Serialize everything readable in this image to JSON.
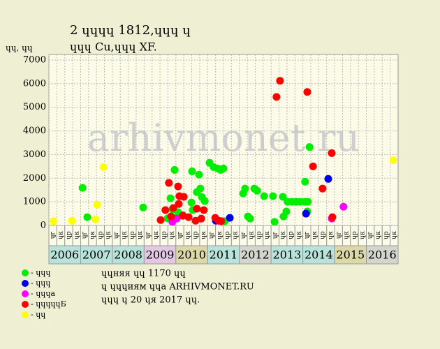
{
  "chart_data": {
    "type": "scatter",
    "title": "2 ɥɥɥɥ 1812,ɥɥɥ ɥ",
    "subtitle": "ɥɥɥ Cu,ɥɥɥ XF.",
    "y_label": "ɥɥ, ɥɥ",
    "watermark": "arhivmonet.ru",
    "xlim": [
      2006,
      2017
    ],
    "ylim": [
      0,
      7000
    ],
    "yticks": [
      0,
      1000,
      2000,
      3000,
      4000,
      5000,
      6000,
      7000
    ],
    "grid": true,
    "years": [
      2006,
      2007,
      2008,
      2009,
      2010,
      2011,
      2012,
      2013,
      2014,
      2015,
      2016
    ],
    "year_colors": [
      "#b9e3da",
      "#b9e3da",
      "#b9e3da",
      "#e3c8e3",
      "#dcd8a8",
      "#b9e3da",
      "#d3d6cc",
      "#b9e3da",
      "#b9e3da",
      "#dcd8a8",
      "#d3d6cc"
    ],
    "quarter_labels": [
      "ɥг",
      "ɥк",
      "ɥр",
      "ɥк"
    ],
    "series": [
      {
        "name": "- ɥɥɥ",
        "color": "#00ee00",
        "x": [
          2007.06,
          2007.21,
          2008.97,
          2009.74,
          2009.83,
          2009.96,
          2009.89,
          2010.0,
          2010.07,
          2010.22,
          2010.49,
          2010.51,
          2010.53,
          2010.66,
          2010.73,
          2010.77,
          2010.82,
          2010.91,
          2011.06,
          2011.19,
          2011.32,
          2011.41,
          2011.5,
          2011.54,
          2012.12,
          2012.18,
          2012.27,
          2012.34,
          2012.47,
          2012.56,
          2012.78,
          2013.06,
          2013.11,
          2013.37,
          2013.39,
          2013.48,
          2013.52,
          2013.66,
          2013.79,
          2013.92,
          2014.07,
          2014.16,
          2014.07,
          2014.21,
          2014.14
        ],
        "values": [
          1590,
          350,
          760,
          300,
          1150,
          2350,
          680,
          320,
          560,
          440,
          970,
          2290,
          650,
          1410,
          2150,
          1560,
          1200,
          1030,
          2650,
          2470,
          2410,
          2350,
          2410,
          180,
          1350,
          1560,
          380,
          290,
          1560,
          1470,
          1240,
          1240,
          150,
          1210,
          380,
          590,
          1000,
          1000,
          1000,
          1000,
          1000,
          1000,
          1850,
          3320,
          590
        ]
      },
      {
        "name": "- ɥɥɥ",
        "color": "#0000ee",
        "x": [
          2011.26,
          2011.7,
          2014.1,
          2014.8
        ],
        "values": [
          200,
          320,
          500,
          1970
        ]
      },
      {
        "name": "- ɥɥɥа",
        "color": "#ff00ff",
        "x": [
          2009.89,
          2010.03,
          2014.91,
          2015.28
        ],
        "values": [
          150,
          290,
          290,
          790
        ]
      },
      {
        "name": "- ɥɥɥɥɥБ",
        "color": "#ff0000",
        "x": [
          2009.52,
          2009.67,
          2009.78,
          2009.85,
          2009.92,
          2010.07,
          2010.11,
          2010.22,
          2010.09,
          2010.25,
          2010.4,
          2010.62,
          2010.66,
          2010.8,
          2010.88,
          2011.24,
          2011.35,
          2011.43,
          2013.17,
          2013.28,
          2014.14,
          2014.32,
          2014.62,
          2014.91,
          2014.93
        ],
        "values": [
          230,
          650,
          1800,
          380,
          740,
          1650,
          1240,
          410,
          910,
          1210,
          350,
          200,
          710,
          290,
          650,
          320,
          200,
          180,
          5440,
          6120,
          5650,
          2500,
          1560,
          3060,
          350
        ]
      },
      {
        "name": "- ɥɥ",
        "color": "#ffff00",
        "x": [
          2006.15,
          2006.73,
          2007.47,
          2007.52,
          2007.72,
          2016.85
        ],
        "values": [
          180,
          200,
          260,
          880,
          2470,
          2760
        ]
      }
    ],
    "notes": [
      "ɥɥняя ɥɥ 1170 ɥɥ",
      "ɥ ɥɥɥиям ɥɥа ARHIVMONET.RU",
      "ɥɥɥ ɥ 20 ɥя 2017 ɥɥ."
    ]
  }
}
